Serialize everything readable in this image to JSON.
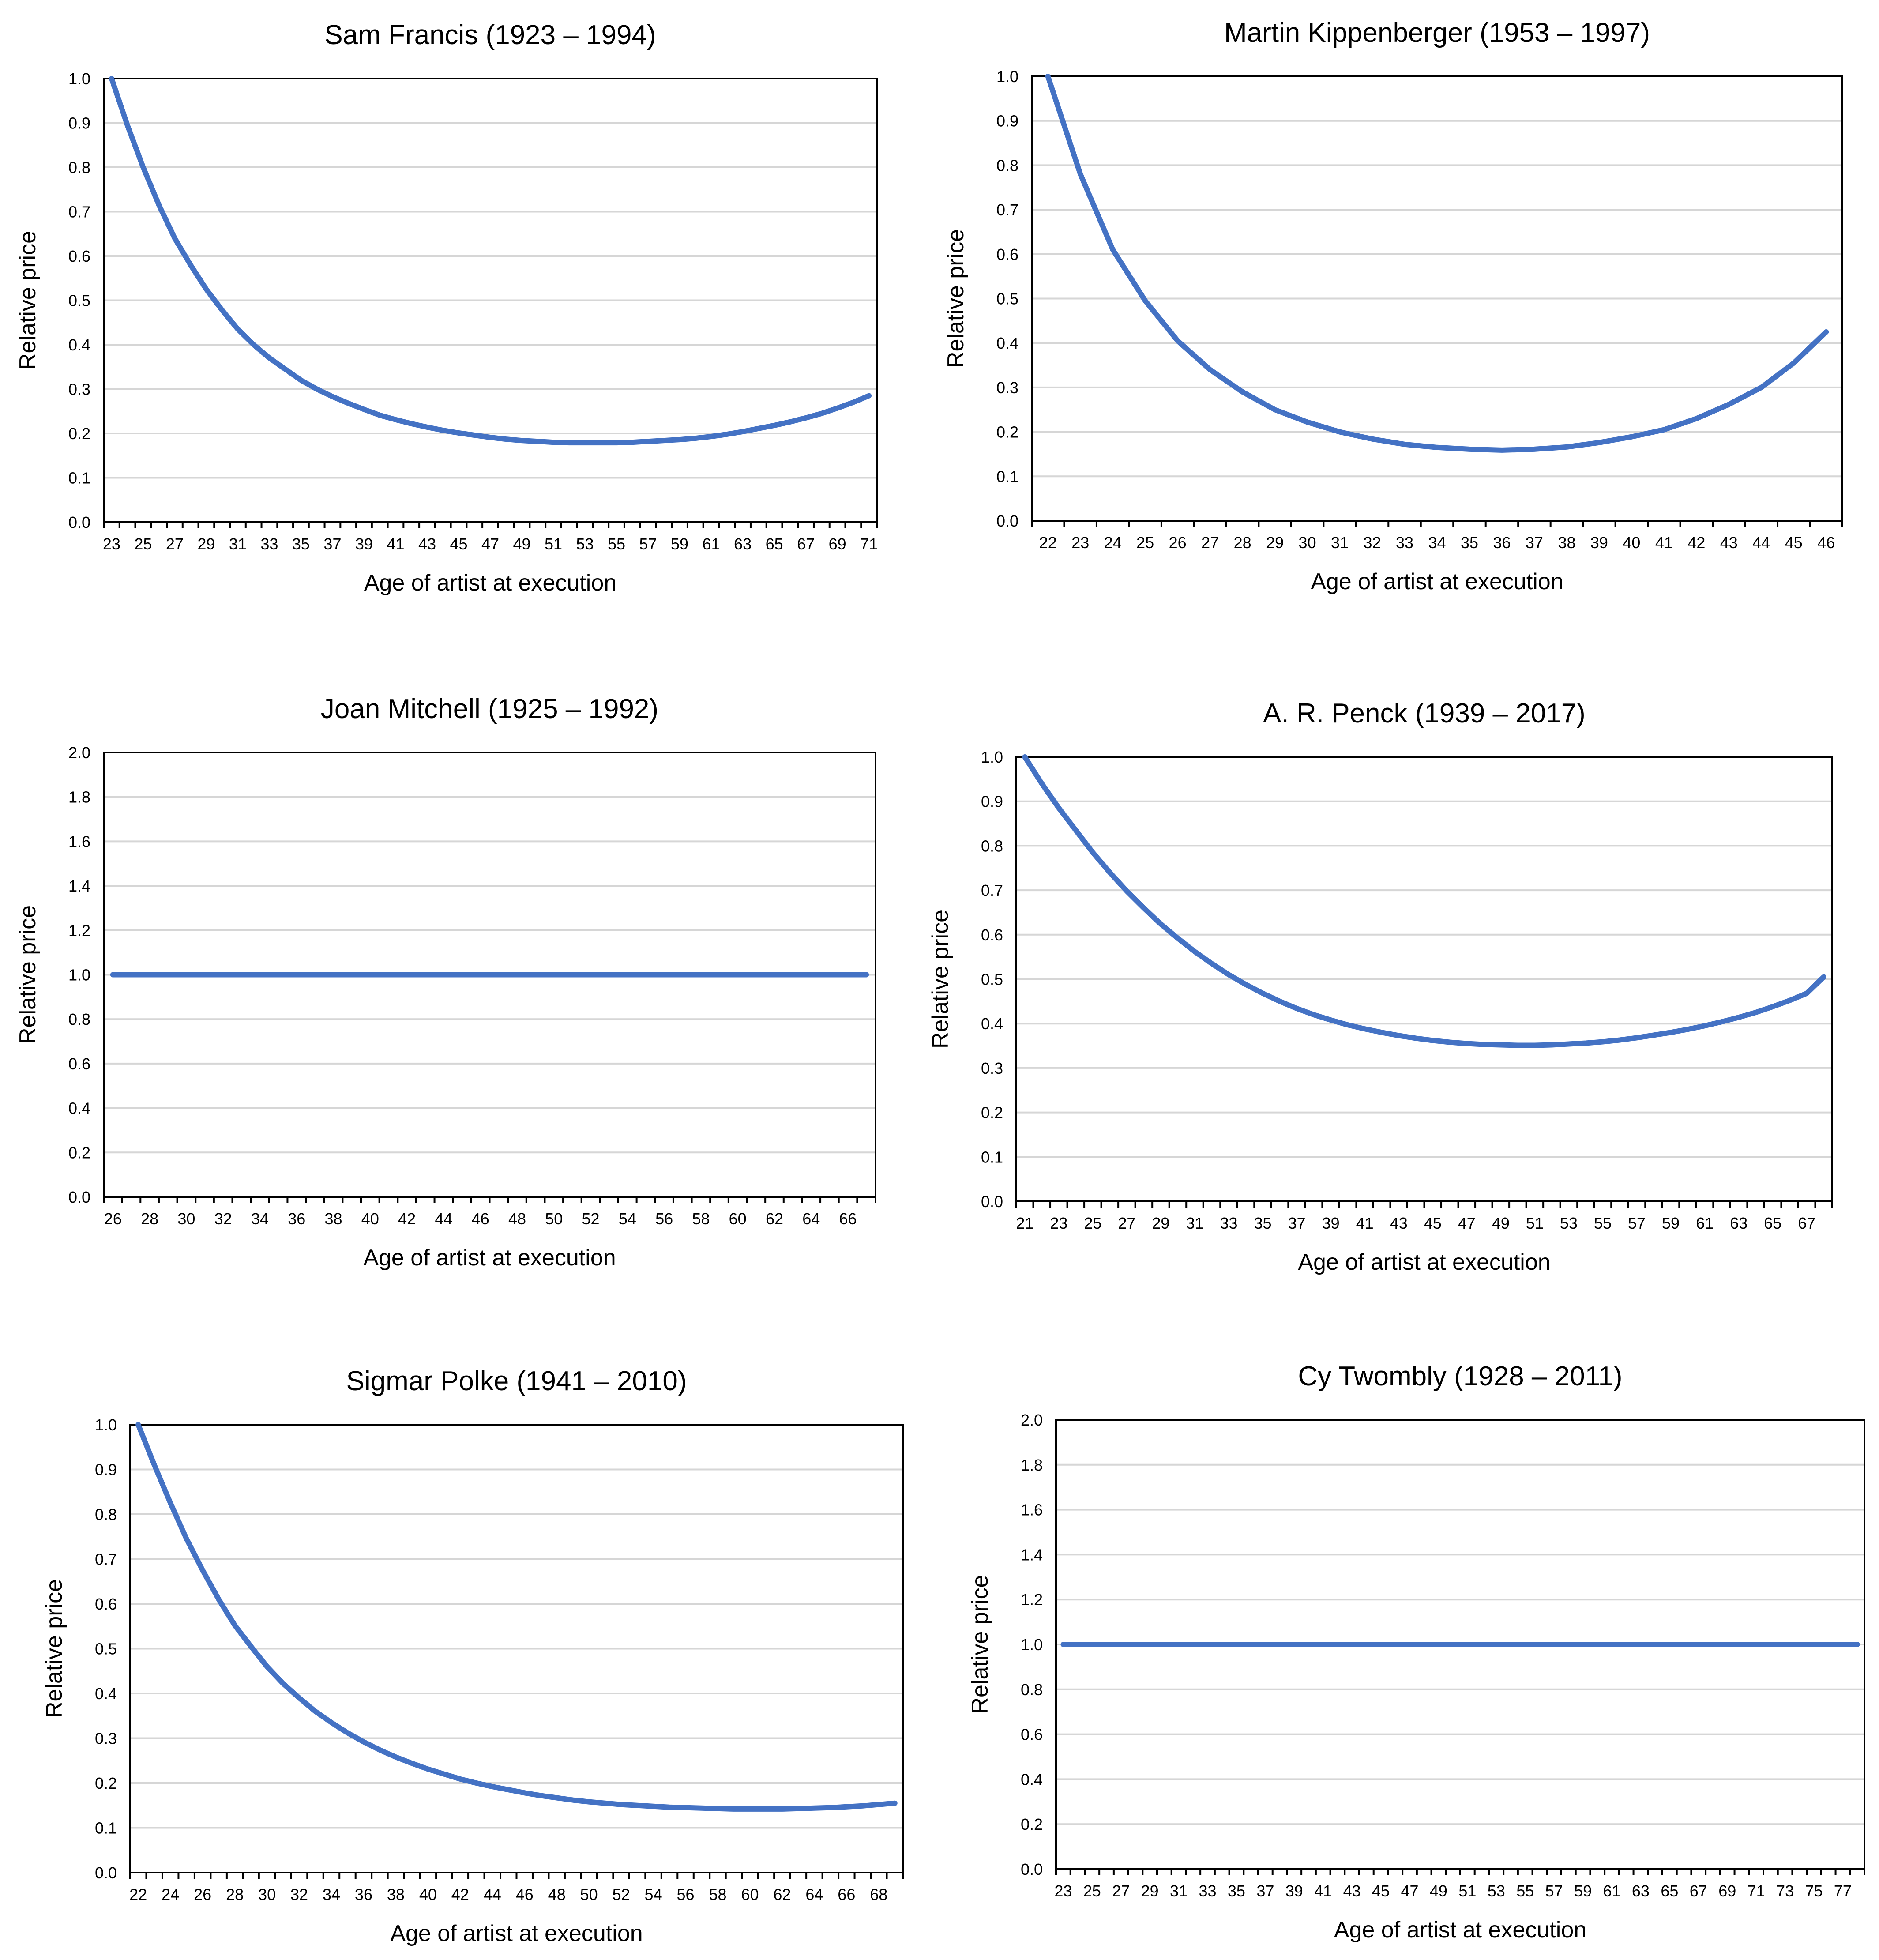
{
  "colors": {
    "series": "#4472C4",
    "grid": "#d6d6d6",
    "frame": "#000000"
  },
  "chart_data": [
    {
      "type": "line",
      "title": "Sam Francis (1923 – 1994)",
      "xlabel": "Age of artist at execution",
      "ylabel": "Relative price",
      "ylim": [
        0,
        1.0
      ],
      "yticks": [
        "0.0",
        "0.1",
        "0.2",
        "0.3",
        "0.4",
        "0.5",
        "0.6",
        "0.7",
        "0.8",
        "0.9",
        "1.0"
      ],
      "x_range": [
        23,
        71
      ],
      "xtick_step": 2,
      "values": [
        1.0,
        0.895,
        0.8,
        0.715,
        0.64,
        0.58,
        0.525,
        0.478,
        0.435,
        0.4,
        0.37,
        0.345,
        0.32,
        0.3,
        0.283,
        0.268,
        0.254,
        0.241,
        0.231,
        0.222,
        0.214,
        0.207,
        0.201,
        0.196,
        0.191,
        0.187,
        0.184,
        0.182,
        0.18,
        0.179,
        0.179,
        0.179,
        0.179,
        0.18,
        0.182,
        0.184,
        0.186,
        0.189,
        0.193,
        0.198,
        0.204,
        0.211,
        0.218,
        0.226,
        0.235,
        0.245,
        0.257,
        0.27,
        0.285
      ]
    },
    {
      "type": "line",
      "title": "Martin Kippenberger (1953 – 1997)",
      "xlabel": "Age of artist at execution",
      "ylabel": "Relative price",
      "ylim": [
        0,
        1.0
      ],
      "yticks": [
        "0.0",
        "0.1",
        "0.2",
        "0.3",
        "0.4",
        "0.5",
        "0.6",
        "0.7",
        "0.8",
        "0.9",
        "1.0"
      ],
      "x_range": [
        22,
        46
      ],
      "xtick_step": 1,
      "values": [
        1.0,
        0.78,
        0.61,
        0.495,
        0.405,
        0.34,
        0.29,
        0.25,
        0.222,
        0.2,
        0.184,
        0.172,
        0.165,
        0.161,
        0.159,
        0.161,
        0.166,
        0.176,
        0.189,
        0.205,
        0.23,
        0.262,
        0.3,
        0.355,
        0.425
      ]
    },
    {
      "type": "line",
      "title": "Joan Mitchell (1925 – 1992)",
      "xlabel": "Age of artist at execution",
      "ylabel": "Relative price",
      "ylim": [
        0,
        2.0
      ],
      "yticks": [
        "0.0",
        "0.2",
        "0.4",
        "0.6",
        "0.8",
        "1.0",
        "1.2",
        "1.4",
        "1.6",
        "1.8",
        "2.0"
      ],
      "x_range": [
        26,
        67
      ],
      "xtick_step": 2,
      "values": [
        1.0,
        1.0,
        1.0,
        1.0,
        1.0,
        1.0,
        1.0,
        1.0,
        1.0,
        1.0,
        1.0,
        1.0,
        1.0,
        1.0,
        1.0,
        1.0,
        1.0,
        1.0,
        1.0,
        1.0,
        1.0,
        1.0,
        1.0,
        1.0,
        1.0,
        1.0,
        1.0,
        1.0,
        1.0,
        1.0,
        1.0,
        1.0,
        1.0,
        1.0,
        1.0,
        1.0,
        1.0,
        1.0,
        1.0,
        1.0,
        1.0,
        1.0
      ]
    },
    {
      "type": "line",
      "title": "A. R. Penck (1939 – 2017)",
      "xlabel": "Age of artist at execution",
      "ylabel": "Relative price",
      "ylim": [
        0,
        1.0
      ],
      "yticks": [
        "0.0",
        "0.1",
        "0.2",
        "0.3",
        "0.4",
        "0.5",
        "0.6",
        "0.7",
        "0.8",
        "0.9",
        "1.0"
      ],
      "x_range": [
        21,
        68
      ],
      "xtick_step": 2,
      "values": [
        1.0,
        0.94,
        0.885,
        0.835,
        0.785,
        0.74,
        0.698,
        0.66,
        0.624,
        0.592,
        0.562,
        0.535,
        0.51,
        0.488,
        0.468,
        0.45,
        0.434,
        0.42,
        0.408,
        0.397,
        0.388,
        0.38,
        0.373,
        0.367,
        0.362,
        0.358,
        0.355,
        0.353,
        0.352,
        0.351,
        0.351,
        0.352,
        0.354,
        0.356,
        0.359,
        0.363,
        0.368,
        0.374,
        0.38,
        0.387,
        0.395,
        0.404,
        0.414,
        0.425,
        0.438,
        0.452,
        0.468,
        0.505
      ]
    },
    {
      "type": "line",
      "title": "Sigmar Polke (1941 – 2010)",
      "xlabel": "Age of artist at execution",
      "ylabel": "Relative price",
      "ylim": [
        0,
        1.0
      ],
      "yticks": [
        "0.0",
        "0.1",
        "0.2",
        "0.3",
        "0.4",
        "0.5",
        "0.6",
        "0.7",
        "0.8",
        "0.9",
        "1.0"
      ],
      "x_range": [
        22,
        69
      ],
      "xtick_step": 2,
      "values": [
        1.0,
        0.91,
        0.825,
        0.745,
        0.675,
        0.61,
        0.552,
        0.505,
        0.46,
        0.422,
        0.39,
        0.36,
        0.335,
        0.312,
        0.292,
        0.274,
        0.258,
        0.244,
        0.231,
        0.22,
        0.209,
        0.2,
        0.192,
        0.185,
        0.178,
        0.172,
        0.167,
        0.162,
        0.158,
        0.155,
        0.152,
        0.15,
        0.148,
        0.146,
        0.145,
        0.144,
        0.143,
        0.142,
        0.142,
        0.142,
        0.142,
        0.143,
        0.144,
        0.145,
        0.147,
        0.149,
        0.152,
        0.155
      ]
    },
    {
      "type": "line",
      "title": "Cy Twombly (1928 – 2011)",
      "xlabel": "Age of artist at execution",
      "ylabel": "Relative price",
      "ylim": [
        0,
        2.0
      ],
      "yticks": [
        "0.0",
        "0.2",
        "0.4",
        "0.6",
        "0.8",
        "1.0",
        "1.2",
        "1.4",
        "1.6",
        "1.8",
        "2.0"
      ],
      "x_range": [
        23,
        78
      ],
      "xtick_step": 2,
      "values": [
        1.0,
        1.0,
        1.0,
        1.0,
        1.0,
        1.0,
        1.0,
        1.0,
        1.0,
        1.0,
        1.0,
        1.0,
        1.0,
        1.0,
        1.0,
        1.0,
        1.0,
        1.0,
        1.0,
        1.0,
        1.0,
        1.0,
        1.0,
        1.0,
        1.0,
        1.0,
        1.0,
        1.0,
        1.0,
        1.0,
        1.0,
        1.0,
        1.0,
        1.0,
        1.0,
        1.0,
        1.0,
        1.0,
        1.0,
        1.0,
        1.0,
        1.0,
        1.0,
        1.0,
        1.0,
        1.0,
        1.0,
        1.0,
        1.0,
        1.0,
        1.0,
        1.0,
        1.0,
        1.0,
        1.0,
        1.0
      ]
    }
  ]
}
